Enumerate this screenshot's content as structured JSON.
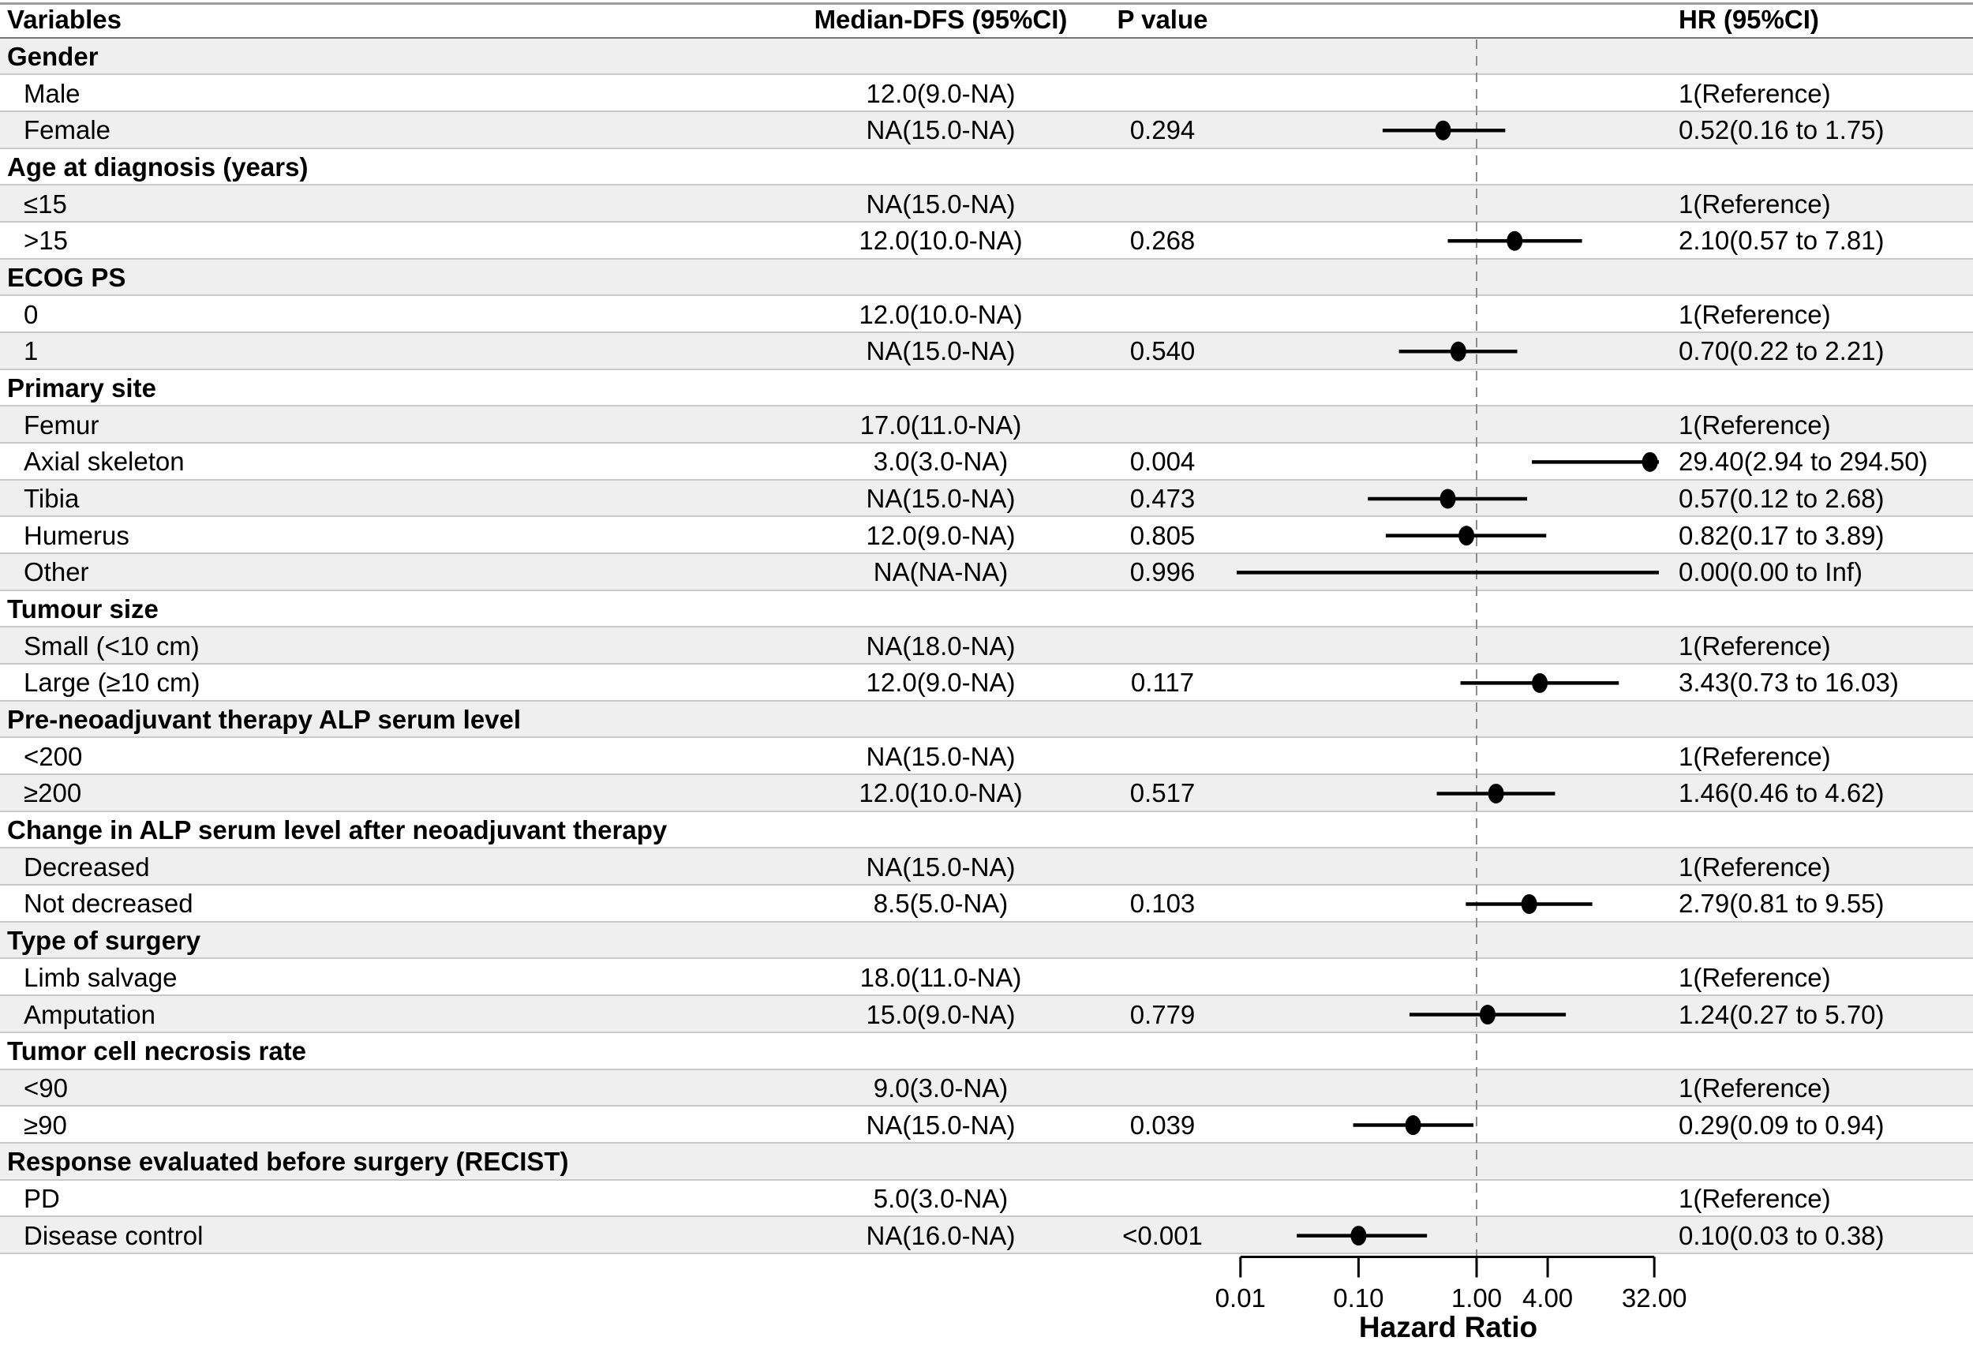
{
  "header": {
    "variables": "Variables",
    "median": "Median-DFS (95%CI)",
    "p_value": "P value",
    "hr": "HR (95%CI)"
  },
  "colors": {
    "stripe": "#efefef",
    "row_line": "#c9c9c9",
    "top_line": "#9e9e9e",
    "header_line": "#757575",
    "reference_dash": "#8c8c8c",
    "marker": "#000000",
    "axis": "#000000",
    "text": "#000000"
  },
  "chart_data": {
    "type": "forest",
    "x_scale": "log10",
    "xlabel": "Hazard Ratio",
    "reference_line": 1.0,
    "x_ticks": [
      0.01,
      0.1,
      1.0,
      4.0,
      32.0
    ],
    "x_tick_labels": [
      "0.01",
      "0.10",
      "1.00",
      "4.00",
      "32.00"
    ],
    "x_range_drawn": [
      0.009,
      35
    ],
    "columns": [
      "Variables",
      "Median-DFS (95%CI)",
      "P value",
      "HR (95%CI)"
    ],
    "rows": [
      {
        "kind": "section",
        "label": "Gender",
        "median": "",
        "p": "",
        "hr_text": "",
        "hr": null,
        "lo": null,
        "hi": null
      },
      {
        "kind": "item",
        "label": "Male",
        "median": "12.0(9.0-NA)",
        "p": "",
        "hr_text": "1(Reference)",
        "hr": null,
        "lo": null,
        "hi": null
      },
      {
        "kind": "item",
        "label": "Female",
        "median": "NA(15.0-NA)",
        "p": "0.294",
        "hr_text": "0.52(0.16 to 1.75)",
        "hr": 0.52,
        "lo": 0.16,
        "hi": 1.75
      },
      {
        "kind": "section",
        "label": "Age at diagnosis (years)",
        "median": "",
        "p": "",
        "hr_text": "",
        "hr": null,
        "lo": null,
        "hi": null
      },
      {
        "kind": "item",
        "label": "≤15",
        "median": "NA(15.0-NA)",
        "p": "",
        "hr_text": "1(Reference)",
        "hr": null,
        "lo": null,
        "hi": null
      },
      {
        "kind": "item",
        "label": ">15",
        "median": "12.0(10.0-NA)",
        "p": "0.268",
        "hr_text": "2.10(0.57 to 7.81)",
        "hr": 2.1,
        "lo": 0.57,
        "hi": 7.81
      },
      {
        "kind": "section",
        "label": "ECOG PS",
        "median": "",
        "p": "",
        "hr_text": "",
        "hr": null,
        "lo": null,
        "hi": null
      },
      {
        "kind": "item",
        "label": "0",
        "median": "12.0(10.0-NA)",
        "p": "",
        "hr_text": "1(Reference)",
        "hr": null,
        "lo": null,
        "hi": null
      },
      {
        "kind": "item",
        "label": "1",
        "median": "NA(15.0-NA)",
        "p": "0.540",
        "hr_text": "0.70(0.22 to 2.21)",
        "hr": 0.7,
        "lo": 0.22,
        "hi": 2.21
      },
      {
        "kind": "section",
        "label": "Primary site",
        "median": "",
        "p": "",
        "hr_text": "",
        "hr": null,
        "lo": null,
        "hi": null
      },
      {
        "kind": "item",
        "label": "Femur",
        "median": "17.0(11.0-NA)",
        "p": "",
        "hr_text": "1(Reference)",
        "hr": null,
        "lo": null,
        "hi": null
      },
      {
        "kind": "item",
        "label": "Axial skeleton",
        "median": "3.0(3.0-NA)",
        "p": "0.004",
        "hr_text": "29.40(2.94 to 294.50)",
        "hr": 29.4,
        "lo": 2.94,
        "hi": 294.5
      },
      {
        "kind": "item",
        "label": "Tibia",
        "median": "NA(15.0-NA)",
        "p": "0.473",
        "hr_text": "0.57(0.12 to 2.68)",
        "hr": 0.57,
        "lo": 0.12,
        "hi": 2.68
      },
      {
        "kind": "item",
        "label": "Humerus",
        "median": "12.0(9.0-NA)",
        "p": "0.805",
        "hr_text": "0.82(0.17 to 3.89)",
        "hr": 0.82,
        "lo": 0.17,
        "hi": 3.89
      },
      {
        "kind": "item",
        "label": "Other",
        "median": "NA(NA-NA)",
        "p": "0.996",
        "hr_text": "0.00(0.00 to Inf)",
        "hr": 0.0,
        "lo": 0.0,
        "hi": null
      },
      {
        "kind": "section",
        "label": "Tumour size",
        "median": "",
        "p": "",
        "hr_text": "",
        "hr": null,
        "lo": null,
        "hi": null
      },
      {
        "kind": "item",
        "label": "Small (<10 cm)",
        "median": "NA(18.0-NA)",
        "p": "",
        "hr_text": "1(Reference)",
        "hr": null,
        "lo": null,
        "hi": null
      },
      {
        "kind": "item",
        "label": "Large (≥10 cm)",
        "median": "12.0(9.0-NA)",
        "p": "0.117",
        "hr_text": "3.43(0.73 to 16.03)",
        "hr": 3.43,
        "lo": 0.73,
        "hi": 16.03
      },
      {
        "kind": "section",
        "label": "Pre-neoadjuvant therapy ALP serum level",
        "median": "",
        "p": "",
        "hr_text": "",
        "hr": null,
        "lo": null,
        "hi": null
      },
      {
        "kind": "item",
        "label": "<200",
        "median": "NA(15.0-NA)",
        "p": "",
        "hr_text": "1(Reference)",
        "hr": null,
        "lo": null,
        "hi": null
      },
      {
        "kind": "item",
        "label": "≥200",
        "median": "12.0(10.0-NA)",
        "p": "0.517",
        "hr_text": "1.46(0.46 to 4.62)",
        "hr": 1.46,
        "lo": 0.46,
        "hi": 4.62
      },
      {
        "kind": "section",
        "label": "Change in ALP serum level after neoadjuvant therapy",
        "median": "",
        "p": "",
        "hr_text": "",
        "hr": null,
        "lo": null,
        "hi": null
      },
      {
        "kind": "item",
        "label": "Decreased",
        "median": "NA(15.0-NA)",
        "p": "",
        "hr_text": "1(Reference)",
        "hr": null,
        "lo": null,
        "hi": null
      },
      {
        "kind": "item",
        "label": "Not decreased",
        "median": "8.5(5.0-NA)",
        "p": "0.103",
        "hr_text": "2.79(0.81 to 9.55)",
        "hr": 2.79,
        "lo": 0.81,
        "hi": 9.55
      },
      {
        "kind": "section",
        "label": "Type of surgery",
        "median": "",
        "p": "",
        "hr_text": "",
        "hr": null,
        "lo": null,
        "hi": null
      },
      {
        "kind": "item",
        "label": "Limb salvage",
        "median": "18.0(11.0-NA)",
        "p": "",
        "hr_text": "1(Reference)",
        "hr": null,
        "lo": null,
        "hi": null
      },
      {
        "kind": "item",
        "label": "Amputation",
        "median": "15.0(9.0-NA)",
        "p": "0.779",
        "hr_text": "1.24(0.27 to 5.70)",
        "hr": 1.24,
        "lo": 0.27,
        "hi": 5.7
      },
      {
        "kind": "section",
        "label": "Tumor cell necrosis rate",
        "median": "",
        "p": "",
        "hr_text": "",
        "hr": null,
        "lo": null,
        "hi": null
      },
      {
        "kind": "item",
        "label": "<90",
        "median": "9.0(3.0-NA)",
        "p": "",
        "hr_text": "1(Reference)",
        "hr": null,
        "lo": null,
        "hi": null
      },
      {
        "kind": "item",
        "label": "≥90",
        "median": "NA(15.0-NA)",
        "p": "0.039",
        "hr_text": "0.29(0.09 to 0.94)",
        "hr": 0.29,
        "lo": 0.09,
        "hi": 0.94
      },
      {
        "kind": "section",
        "label": "Response evaluated before surgery (RECIST)",
        "median": "",
        "p": "",
        "hr_text": "",
        "hr": null,
        "lo": null,
        "hi": null
      },
      {
        "kind": "item",
        "label": "PD",
        "median": "5.0(3.0-NA)",
        "p": "",
        "hr_text": "1(Reference)",
        "hr": null,
        "lo": null,
        "hi": null
      },
      {
        "kind": "item",
        "label": "Disease control",
        "median": "NA(16.0-NA)",
        "p": "<0.001",
        "hr_text": "0.10(0.03 to 0.38)",
        "hr": 0.1,
        "lo": 0.03,
        "hi": 0.38
      }
    ]
  }
}
